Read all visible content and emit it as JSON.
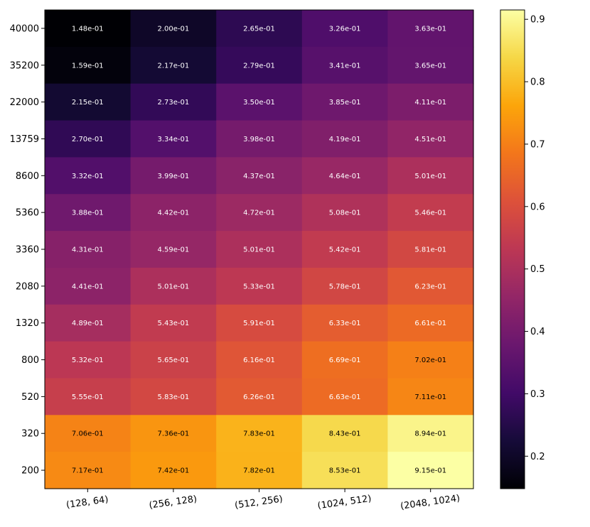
{
  "chart_data": {
    "type": "heatmap",
    "title": "",
    "xlabel": "",
    "ylabel": "",
    "x_categories": [
      "(128, 64)",
      "(256, 128)",
      "(512, 256)",
      "(1024, 512)",
      "(2048, 1024)"
    ],
    "y_categories": [
      "40000",
      "35200",
      "22000",
      "13759",
      "8600",
      "5360",
      "3360",
      "2080",
      "1320",
      "800",
      "520",
      "320",
      "200"
    ],
    "values": [
      [
        0.148,
        0.2,
        0.265,
        0.326,
        0.363
      ],
      [
        0.159,
        0.217,
        0.279,
        0.341,
        0.365
      ],
      [
        0.215,
        0.273,
        0.35,
        0.385,
        0.411
      ],
      [
        0.27,
        0.334,
        0.398,
        0.419,
        0.451
      ],
      [
        0.332,
        0.399,
        0.437,
        0.464,
        0.501
      ],
      [
        0.388,
        0.442,
        0.472,
        0.508,
        0.546
      ],
      [
        0.431,
        0.459,
        0.501,
        0.542,
        0.581
      ],
      [
        0.441,
        0.501,
        0.533,
        0.578,
        0.623
      ],
      [
        0.489,
        0.543,
        0.591,
        0.633,
        0.661
      ],
      [
        0.532,
        0.565,
        0.616,
        0.669,
        0.702
      ],
      [
        0.555,
        0.583,
        0.626,
        0.663,
        0.711
      ],
      [
        0.706,
        0.736,
        0.783,
        0.843,
        0.894
      ],
      [
        0.717,
        0.742,
        0.782,
        0.853,
        0.915
      ]
    ],
    "cell_labels": [
      [
        "1.48e-01",
        "2.00e-01",
        "2.65e-01",
        "3.26e-01",
        "3.63e-01"
      ],
      [
        "1.59e-01",
        "2.17e-01",
        "2.79e-01",
        "3.41e-01",
        "3.65e-01"
      ],
      [
        "2.15e-01",
        "2.73e-01",
        "3.50e-01",
        "3.85e-01",
        "4.11e-01"
      ],
      [
        "2.70e-01",
        "3.34e-01",
        "3.98e-01",
        "4.19e-01",
        "4.51e-01"
      ],
      [
        "3.32e-01",
        "3.99e-01",
        "4.37e-01",
        "4.64e-01",
        "5.01e-01"
      ],
      [
        "3.88e-01",
        "4.42e-01",
        "4.72e-01",
        "5.08e-01",
        "5.46e-01"
      ],
      [
        "4.31e-01",
        "4.59e-01",
        "5.01e-01",
        "5.42e-01",
        "5.81e-01"
      ],
      [
        "4.41e-01",
        "5.01e-01",
        "5.33e-01",
        "5.78e-01",
        "6.23e-01"
      ],
      [
        "4.89e-01",
        "5.43e-01",
        "5.91e-01",
        "6.33e-01",
        "6.61e-01"
      ],
      [
        "5.32e-01",
        "5.65e-01",
        "6.16e-01",
        "6.69e-01",
        "7.02e-01"
      ],
      [
        "5.55e-01",
        "5.83e-01",
        "6.26e-01",
        "6.63e-01",
        "7.11e-01"
      ],
      [
        "7.06e-01",
        "7.36e-01",
        "7.83e-01",
        "8.43e-01",
        "8.94e-01"
      ],
      [
        "7.17e-01",
        "7.42e-01",
        "7.82e-01",
        "8.53e-01",
        "9.15e-01"
      ]
    ],
    "colormap": "inferno",
    "color_range": [
      0.148,
      0.915
    ],
    "colorbar_ticks": [
      0.2,
      0.3,
      0.4,
      0.5,
      0.6,
      0.7,
      0.8,
      0.9
    ],
    "colorbar_tick_labels": [
      "0.2",
      "0.3",
      "0.4",
      "0.5",
      "0.6",
      "0.7",
      "0.8",
      "0.9"
    ],
    "annotation_text_color_dark_above": 0.7,
    "annotation_colors": {
      "light": "#ffffff",
      "dark": "#000000"
    }
  }
}
